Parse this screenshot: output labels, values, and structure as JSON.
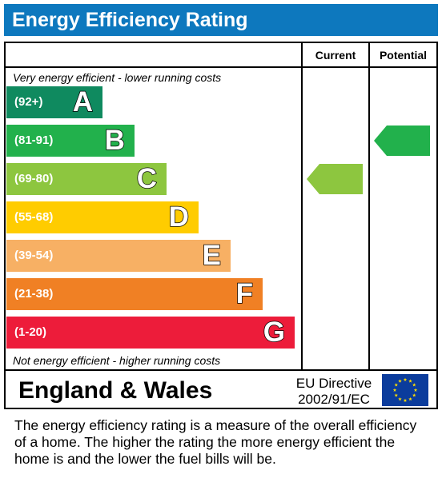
{
  "header": {
    "title": "Energy Efficiency Rating"
  },
  "columns": {
    "current": "Current",
    "potential": "Potential"
  },
  "captions": {
    "top": "Very energy efficient - lower running costs",
    "bottom": "Not energy efficient - higher running costs"
  },
  "chart_data": {
    "type": "bar",
    "title": "Energy Efficiency Rating",
    "bands": [
      {
        "letter": "A",
        "range": "(92+)",
        "color": "#0f8a5f"
      },
      {
        "letter": "B",
        "range": "(81-91)",
        "color": "#22b14c"
      },
      {
        "letter": "C",
        "range": "(69-80)",
        "color": "#8dc63f"
      },
      {
        "letter": "D",
        "range": "(55-68)",
        "color": "#ffcc00"
      },
      {
        "letter": "E",
        "range": "(39-54)",
        "color": "#f7b064"
      },
      {
        "letter": "F",
        "range": "(21-38)",
        "color": "#f08024"
      },
      {
        "letter": "G",
        "range": "(1-20)",
        "color": "#ed1c3a"
      }
    ],
    "current": {
      "value": "77",
      "band": "C",
      "color": "#8dc63f"
    },
    "potential": {
      "value": "88",
      "band": "B",
      "color": "#22b14c"
    }
  },
  "footer": {
    "region": "England & Wales",
    "directive_line1": "EU Directive",
    "directive_line2": "2002/91/EC",
    "flag_icon": "eu-flag-icon"
  },
  "description": "The energy efficiency rating is a measure of the overall efficiency of a home.  The higher the rating the more energy efficient the home is and the lower the fuel bills will be."
}
